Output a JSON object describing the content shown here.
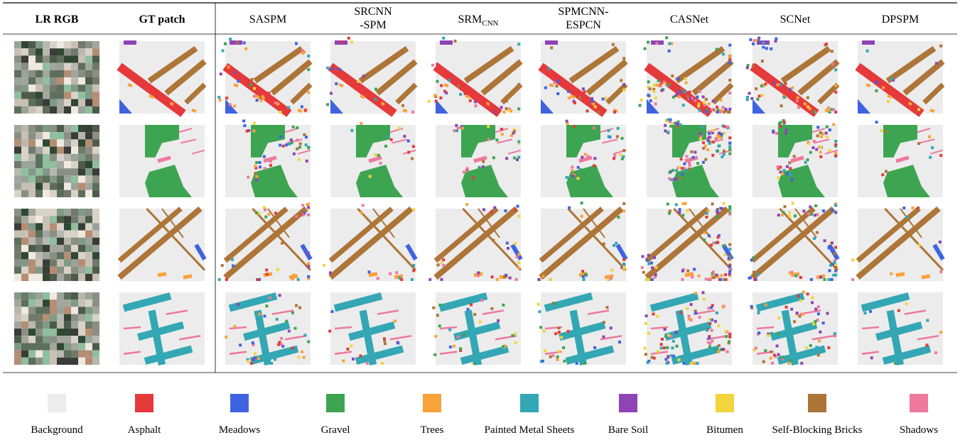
{
  "columns": [
    {
      "lines": [
        "LR RGB"
      ],
      "bold": true
    },
    {
      "lines": [
        "GT patch"
      ],
      "bold": true
    },
    {
      "lines": [
        "SASPM"
      ]
    },
    {
      "lines": [
        "SRCNN",
        "-SPM"
      ]
    },
    {
      "lines": [
        "SRM"
      ],
      "subscript": "CNN"
    },
    {
      "lines": [
        "SPMCNN-",
        "ESPCN"
      ]
    },
    {
      "lines": [
        "CASNet"
      ]
    },
    {
      "lines": [
        "SCNet"
      ]
    },
    {
      "lines": [
        "DPSPM"
      ]
    }
  ],
  "legend": [
    {
      "label": "Background",
      "color": "#ececec"
    },
    {
      "label": "Asphalt",
      "color": "#e5393b"
    },
    {
      "label": "Meadows",
      "color": "#3f63e0"
    },
    {
      "label": "Gravel",
      "color": "#3da552"
    },
    {
      "label": "Trees",
      "color": "#f8a23a"
    },
    {
      "label": "Painted Metal Sheets",
      "color": "#33a7b3"
    },
    {
      "label": "Bare Soil",
      "color": "#8e44b5"
    },
    {
      "label": "Bitumen",
      "color": "#f2d43c"
    },
    {
      "label": "Self-Blocking Bricks",
      "color": "#ad7538"
    },
    {
      "label": "Shadows",
      "color": "#ee789e"
    }
  ]
}
